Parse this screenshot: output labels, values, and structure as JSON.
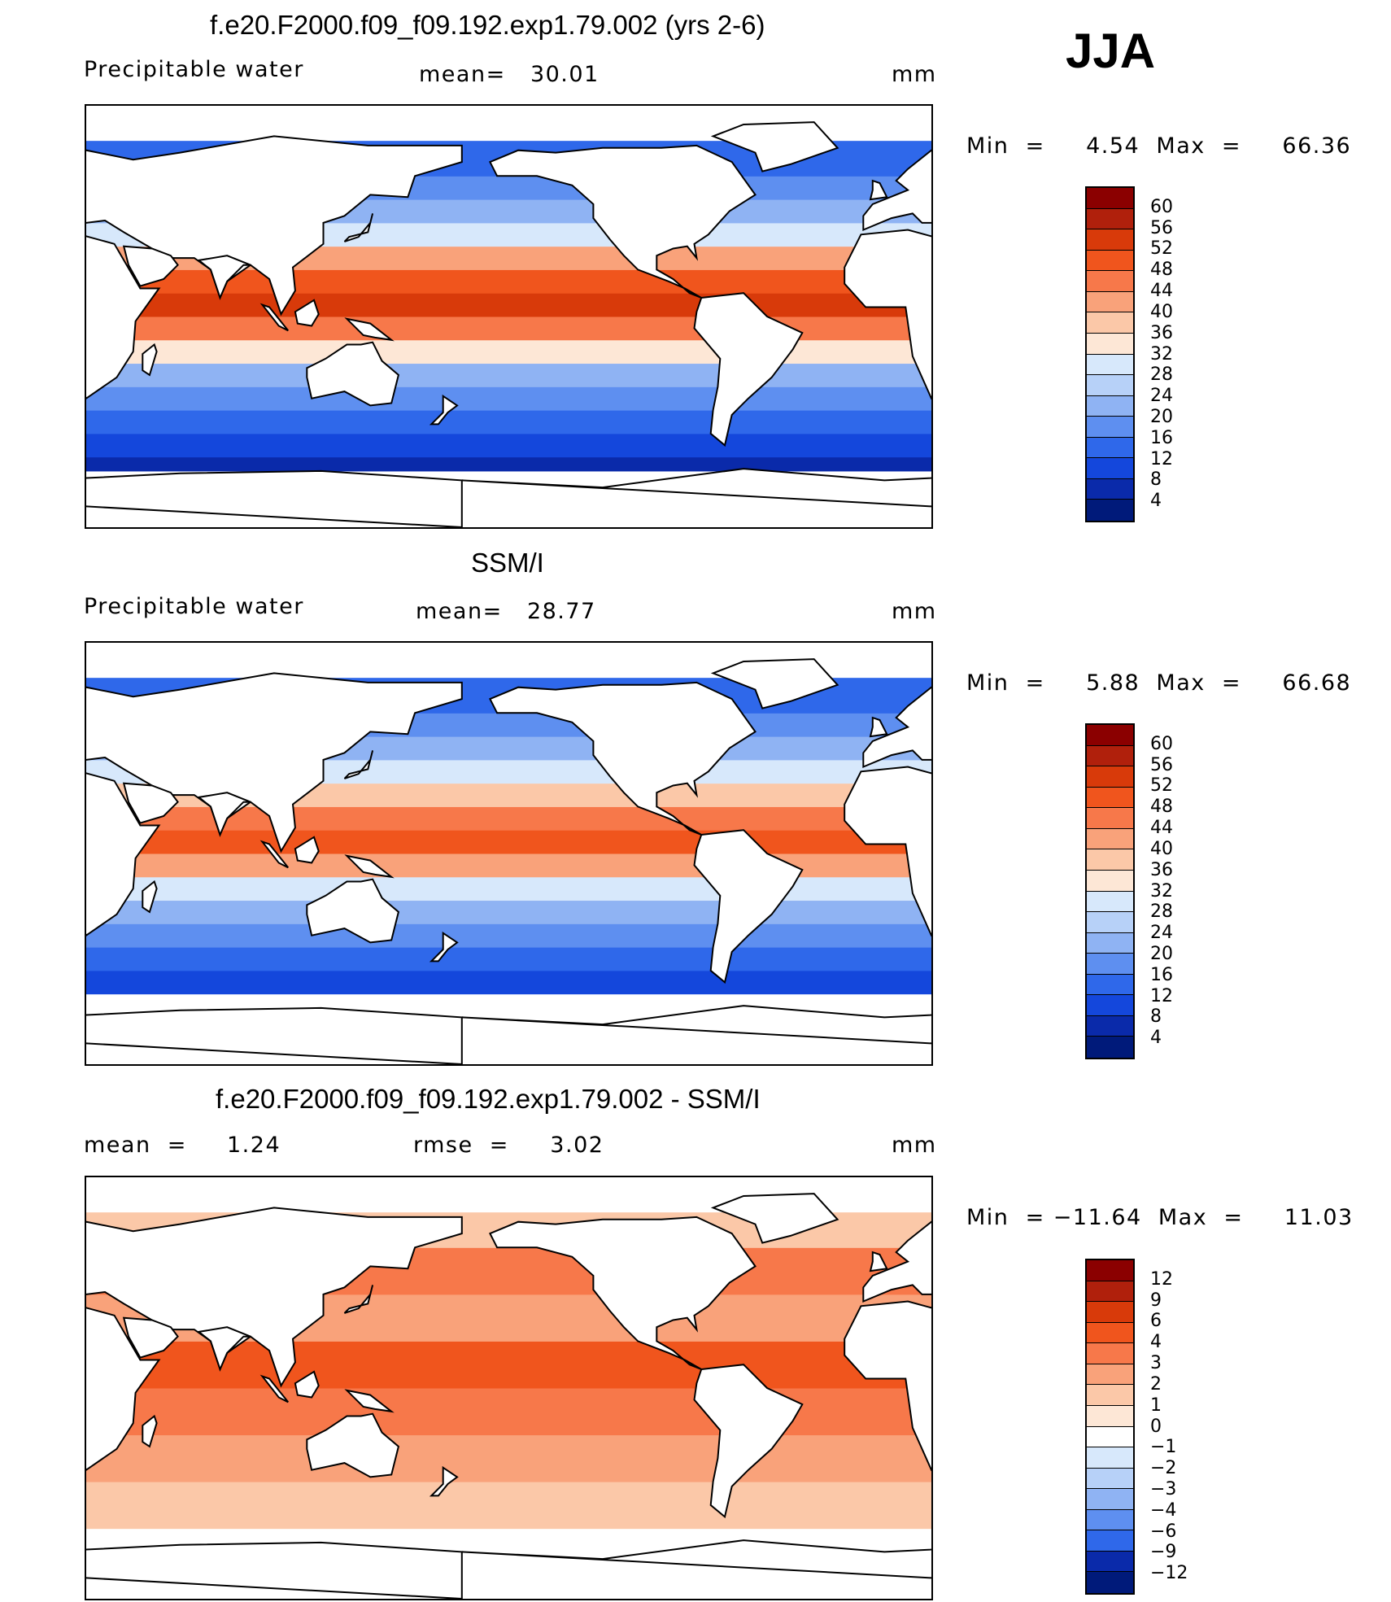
{
  "season_label": "JJA",
  "units": "mm",
  "panels": [
    {
      "title": "f.e20.F2000.f09_f09.192.exp1.79.002 (yrs 2-6)",
      "field_label": "Precipitable water",
      "stat_text": "mean=   30.01",
      "units": "mm",
      "range_text": "Min  =     4.54  Max  =     66.36",
      "colorbar": {
        "levels": [
          "60",
          "56",
          "52",
          "48",
          "44",
          "40",
          "36",
          "32",
          "28",
          "24",
          "20",
          "16",
          "12",
          "8",
          "4"
        ],
        "colors": [
          "#8b0000",
          "#b0200c",
          "#d83a0a",
          "#f0551d",
          "#f7784a",
          "#f9a27a",
          "#fbc8a8",
          "#fde7d6",
          "#d7e8fb",
          "#b7d1f8",
          "#8fb3f3",
          "#5e8ff0",
          "#2f68ea",
          "#1447dc",
          "#0a2aaa",
          "#001a7a"
        ]
      },
      "map_data": {
        "type": "global_pw",
        "bands": [
          {
            "lat": [
              -90,
              -66
            ],
            "value": "none"
          },
          {
            "lat": [
              -66,
              -60
            ],
            "value": "4"
          },
          {
            "lat": [
              -60,
              -50
            ],
            "value": "8"
          },
          {
            "lat": [
              -50,
              -40
            ],
            "value": "12"
          },
          {
            "lat": [
              -40,
              -30
            ],
            "value": "16"
          },
          {
            "lat": [
              -30,
              -20
            ],
            "value": "20"
          },
          {
            "lat": [
              -20,
              -10
            ],
            "value": "32"
          },
          {
            "lat": [
              -10,
              0
            ],
            "value": "44"
          },
          {
            "lat": [
              0,
              10
            ],
            "value": "52"
          },
          {
            "lat": [
              10,
              20
            ],
            "value": "48"
          },
          {
            "lat": [
              20,
              30
            ],
            "value": "40"
          },
          {
            "lat": [
              30,
              40
            ],
            "value": "28"
          },
          {
            "lat": [
              40,
              50
            ],
            "value": "20"
          },
          {
            "lat": [
              50,
              60
            ],
            "value": "16"
          },
          {
            "lat": [
              60,
              75
            ],
            "value": "12"
          }
        ]
      }
    },
    {
      "title": "SSM/I",
      "field_label": "Precipitable water",
      "stat_text": "mean=   28.77",
      "units": "mm",
      "range_text": "Min  =     5.88  Max  =     66.68",
      "colorbar": {
        "levels": [
          "60",
          "56",
          "52",
          "48",
          "44",
          "40",
          "36",
          "32",
          "28",
          "24",
          "20",
          "16",
          "12",
          "8",
          "4"
        ],
        "colors": [
          "#8b0000",
          "#b0200c",
          "#d83a0a",
          "#f0551d",
          "#f7784a",
          "#f9a27a",
          "#fbc8a8",
          "#fde7d6",
          "#d7e8fb",
          "#b7d1f8",
          "#8fb3f3",
          "#5e8ff0",
          "#2f68ea",
          "#1447dc",
          "#0a2aaa",
          "#001a7a"
        ]
      },
      "map_data": {
        "type": "global_pw",
        "bands": [
          {
            "lat": [
              -90,
              -60
            ],
            "value": "none"
          },
          {
            "lat": [
              -60,
              -50
            ],
            "value": "8"
          },
          {
            "lat": [
              -50,
              -40
            ],
            "value": "12"
          },
          {
            "lat": [
              -40,
              -30
            ],
            "value": "16"
          },
          {
            "lat": [
              -30,
              -20
            ],
            "value": "20"
          },
          {
            "lat": [
              -20,
              -10
            ],
            "value": "28"
          },
          {
            "lat": [
              -10,
              0
            ],
            "value": "40"
          },
          {
            "lat": [
              0,
              10
            ],
            "value": "48"
          },
          {
            "lat": [
              10,
              20
            ],
            "value": "44"
          },
          {
            "lat": [
              20,
              30
            ],
            "value": "36"
          },
          {
            "lat": [
              30,
              40
            ],
            "value": "28"
          },
          {
            "lat": [
              40,
              50
            ],
            "value": "20"
          },
          {
            "lat": [
              50,
              60
            ],
            "value": "16"
          },
          {
            "lat": [
              60,
              75
            ],
            "value": "12"
          }
        ]
      }
    },
    {
      "title": "f.e20.F2000.f09_f09.192.exp1.79.002 - SSM/I",
      "field_label": "mean  =",
      "stat_text": "1.24",
      "rmse_text": "rmse  =     3.02",
      "units": "mm",
      "range_text": "Min  = −11.64  Max  =     11.03",
      "colorbar": {
        "levels": [
          "12",
          "9",
          "6",
          "4",
          "3",
          "2",
          "1",
          "0",
          "−1",
          "−2",
          "−3",
          "−4",
          "−6",
          "−9",
          "−12"
        ],
        "colors": [
          "#8b0000",
          "#b0200c",
          "#d83a0a",
          "#f0551d",
          "#f7784a",
          "#f9a27a",
          "#fbc8a8",
          "#fde7d6",
          "#ffffff",
          "#d7e8fb",
          "#b7d1f8",
          "#8fb3f3",
          "#5e8ff0",
          "#2f68ea",
          "#0a2aaa",
          "#001a7a"
        ]
      },
      "map_data": {
        "type": "global_diff",
        "bands": [
          {
            "lat": [
              -90,
              -60
            ],
            "value": "none"
          },
          {
            "lat": [
              -60,
              -40
            ],
            "value": "1"
          },
          {
            "lat": [
              -40,
              -20
            ],
            "value": "2"
          },
          {
            "lat": [
              -20,
              0
            ],
            "value": "3"
          },
          {
            "lat": [
              0,
              20
            ],
            "value": "4"
          },
          {
            "lat": [
              20,
              40
            ],
            "value": "2"
          },
          {
            "lat": [
              40,
              60
            ],
            "value": "3"
          },
          {
            "lat": [
              60,
              75
            ],
            "value": "1"
          }
        ]
      }
    }
  ]
}
